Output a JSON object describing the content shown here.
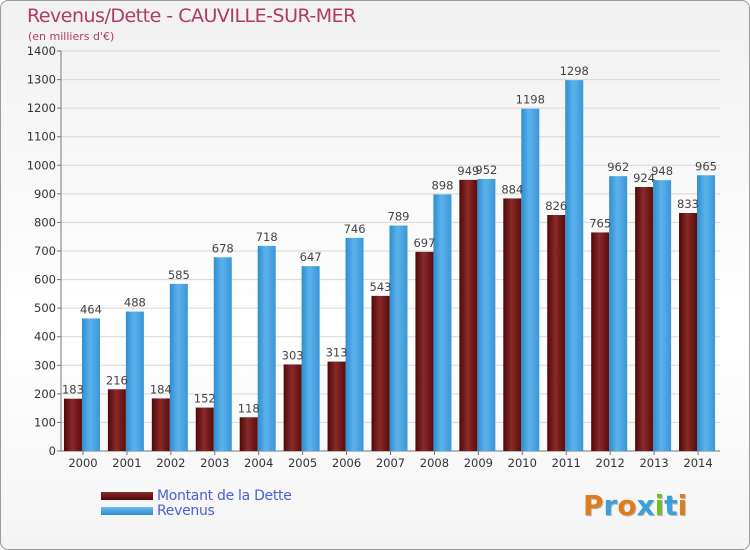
{
  "header": {
    "title": "Revenus/Dette - CAUVILLE-SUR-MER",
    "subtitle": "(en milliers d'€)"
  },
  "colors": {
    "debt": "#6e1414",
    "revenue": "#3f9fe0",
    "title": "#b03a66",
    "legend_text": "#4a5fd6"
  },
  "legend": {
    "debt_label": "Montant de la Dette",
    "revenue_label": "Revenus"
  },
  "logo": {
    "text": "Proxiti"
  },
  "chart_data": {
    "type": "bar",
    "title": "Revenus/Dette - CAUVILLE-SUR-MER",
    "ylabel": "(en milliers d'€)",
    "xlabel": "",
    "ylim": [
      0,
      1400
    ],
    "yticks": [
      0,
      100,
      200,
      300,
      400,
      500,
      600,
      700,
      800,
      900,
      1000,
      1100,
      1200,
      1300,
      1400
    ],
    "grid": true,
    "categories": [
      "2000",
      "2001",
      "2002",
      "2003",
      "2004",
      "2005",
      "2006",
      "2007",
      "2008",
      "2009",
      "2010",
      "2011",
      "2012",
      "2013",
      "2014"
    ],
    "series": [
      {
        "name": "Montant de la Dette",
        "values": [
          183,
          216,
          184,
          152,
          118,
          303,
          313,
          543,
          697,
          949,
          884,
          826,
          765,
          924,
          833
        ]
      },
      {
        "name": "Revenus",
        "values": [
          464,
          488,
          585,
          678,
          718,
          647,
          746,
          789,
          898,
          952,
          1198,
          1298,
          962,
          948,
          965
        ]
      }
    ]
  }
}
